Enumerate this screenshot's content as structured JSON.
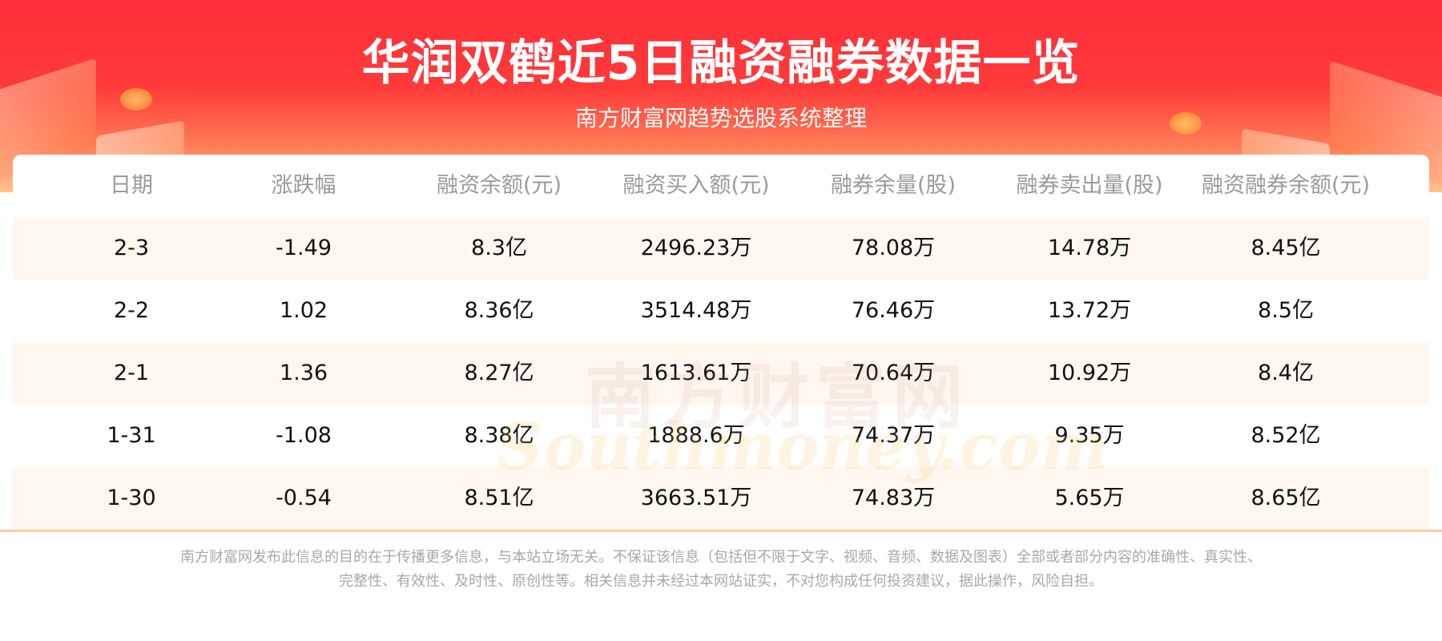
{
  "header": {
    "title": "华润双鹤近5日融资融券数据一览",
    "subtitle": "南方财富网趋势选股系统整理"
  },
  "table": {
    "columns": [
      "日期",
      "涨跌幅",
      "融资余额(元)",
      "融资买入额(元)",
      "融券余量(股)",
      "融券卖出量(股)",
      "融资融券余额(元)"
    ],
    "rows": [
      [
        "2-3",
        "-1.49",
        "8.3亿",
        "2496.23万",
        "78.08万",
        "14.78万",
        "8.45亿"
      ],
      [
        "2-2",
        "1.02",
        "8.36亿",
        "3514.48万",
        "76.46万",
        "13.72万",
        "8.5亿"
      ],
      [
        "2-1",
        "1.36",
        "8.27亿",
        "1613.61万",
        "70.64万",
        "10.92万",
        "8.4亿"
      ],
      [
        "1-31",
        "-1.08",
        "8.38亿",
        "1888.6万",
        "74.37万",
        "9.35万",
        "8.52亿"
      ],
      [
        "1-30",
        "-0.54",
        "8.51亿",
        "3663.51万",
        "74.83万",
        "5.65万",
        "8.65亿"
      ]
    ]
  },
  "watermark": {
    "cn": "南方财富网",
    "en": "Southmoney.com"
  },
  "disclaimer": {
    "line1": "南方财富网发布此信息的目的在于传播更多信息，与本站立场无关。不保证该信息（包括但不限于文字、视频、音频、数据及图表）全部或者部分内容的准确性、真实性、",
    "line2": "完整性、有效性、及时性、原创性等。相关信息并未经过本网站证实，不对您构成任何投资建议，据此操作，风险自担。"
  },
  "colors": {
    "primary": "#ff2e3a",
    "row_alt": "#fff7f0",
    "divider": "#ffcf9e"
  }
}
